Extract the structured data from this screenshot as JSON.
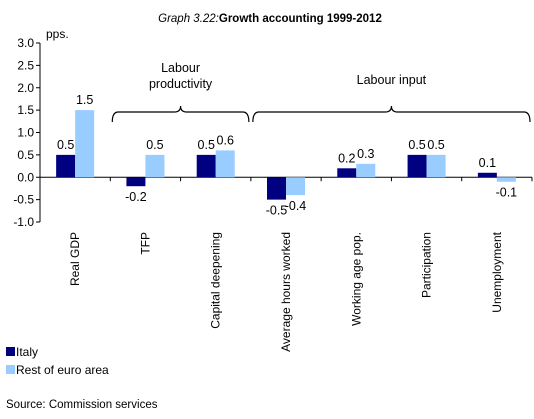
{
  "title_prefix": "Graph 3.22:",
  "title_main": "Growth accounting 1999-2012",
  "source": "Source: Commission services",
  "chart_data": {
    "type": "bar",
    "y_unit": "pps.",
    "ylim": [
      -1.0,
      3.0
    ],
    "yticks": [
      "-1.0",
      "-0.5",
      "0.0",
      "0.5",
      "1.0",
      "1.5",
      "2.0",
      "2.5",
      "3.0"
    ],
    "ytick_values": [
      -1.0,
      -0.5,
      0.0,
      0.5,
      1.0,
      1.5,
      2.0,
      2.5,
      3.0
    ],
    "categories": [
      "Real GDP",
      "TFP",
      "Capital deepening",
      "Average hours worked",
      "Working age pop.",
      "Participation",
      "Unemployment"
    ],
    "series": [
      {
        "name": "Italy",
        "color": "#000080",
        "values": [
          0.5,
          -0.2,
          0.5,
          -0.5,
          0.2,
          0.5,
          0.1
        ],
        "labels": [
          "0.5",
          "-0.2",
          "0.5",
          "-0.5",
          "0.2",
          "0.5",
          "0.1"
        ]
      },
      {
        "name": "Rest of euro area",
        "color": "#99ccff",
        "values": [
          1.5,
          0.5,
          0.6,
          -0.4,
          0.3,
          0.5,
          -0.1
        ],
        "labels": [
          "1.5",
          "0.5",
          "0.6",
          "-0.4",
          "0.3",
          "0.5",
          "-0.1"
        ]
      }
    ],
    "groups": [
      {
        "label_lines": [
          "Labour",
          "productivity"
        ],
        "from": 1,
        "to": 2
      },
      {
        "label_lines": [
          "Labour input"
        ],
        "from": 3,
        "to": 6
      }
    ],
    "grid": false,
    "legend_position": "bottom-left"
  }
}
